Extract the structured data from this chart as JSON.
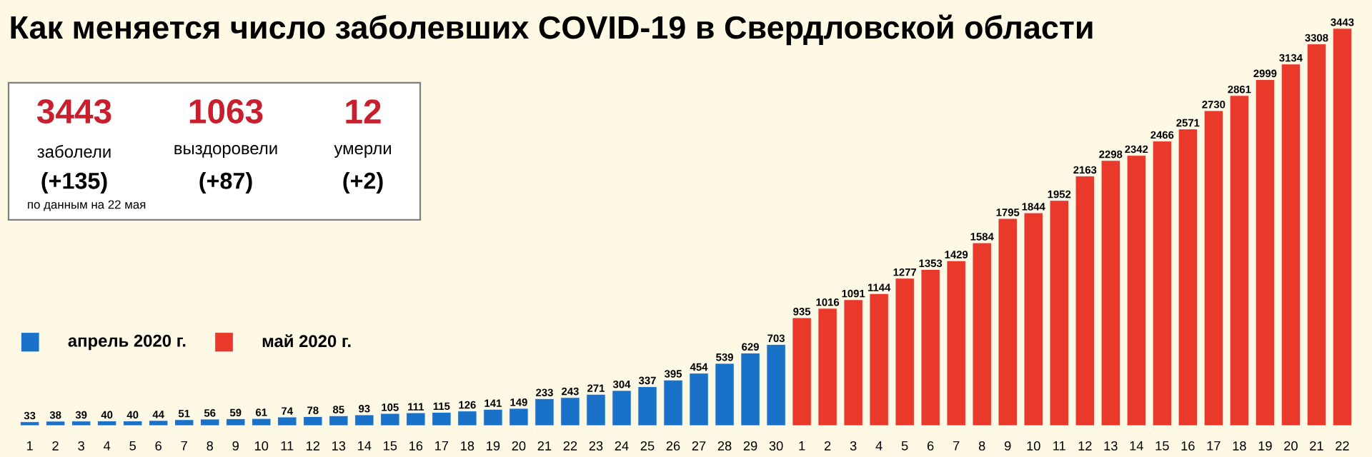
{
  "chart_data": {
    "type": "bar",
    "title": "Как  меняется число  заболевших COVID-19 в Свердловской области",
    "categories": [
      "1",
      "2",
      "3",
      "4",
      "5",
      "6",
      "7",
      "8",
      "9",
      "10",
      "11",
      "12",
      "13",
      "14",
      "15",
      "16",
      "17",
      "18",
      "19",
      "20",
      "21",
      "22",
      "23",
      "24",
      "25",
      "26",
      "27",
      "28",
      "29",
      "30",
      "1",
      "2",
      "3",
      "4",
      "5",
      "6",
      "7",
      "8",
      "9",
      "10",
      "11",
      "12",
      "13",
      "14",
      "15",
      "16",
      "17",
      "18",
      "19",
      "20",
      "21",
      "22"
    ],
    "series": [
      {
        "name": "апрель 2020 г.",
        "color": "#1a72c8",
        "values": [
          33,
          38,
          39,
          40,
          40,
          44,
          51,
          56,
          59,
          61,
          74,
          78,
          85,
          93,
          105,
          111,
          115,
          126,
          141,
          149,
          233,
          243,
          271,
          304,
          337,
          395,
          454,
          539,
          629,
          703,
          null,
          null,
          null,
          null,
          null,
          null,
          null,
          null,
          null,
          null,
          null,
          null,
          null,
          null,
          null,
          null,
          null,
          null,
          null,
          null,
          null,
          null
        ]
      },
      {
        "name": "май 2020 г.",
        "color": "#e8392a",
        "values": [
          null,
          null,
          null,
          null,
          null,
          null,
          null,
          null,
          null,
          null,
          null,
          null,
          null,
          null,
          null,
          null,
          null,
          null,
          null,
          null,
          null,
          null,
          null,
          null,
          null,
          null,
          null,
          null,
          null,
          null,
          935,
          1016,
          1091,
          1144,
          1277,
          1353,
          1429,
          1584,
          1795,
          1844,
          1952,
          2163,
          2298,
          2342,
          2466,
          2571,
          2730,
          2861,
          2999,
          3134,
          3308,
          3443
        ]
      }
    ],
    "data_labels": true,
    "legend": "left",
    "tick_labels": "x",
    "annotations": [
      "3443",
      "1063",
      "12",
      "заболели",
      "выздоровели",
      "умерли",
      "(+135)",
      "(+87)",
      "(+2)",
      "по данным на 22 мая"
    ]
  }
}
